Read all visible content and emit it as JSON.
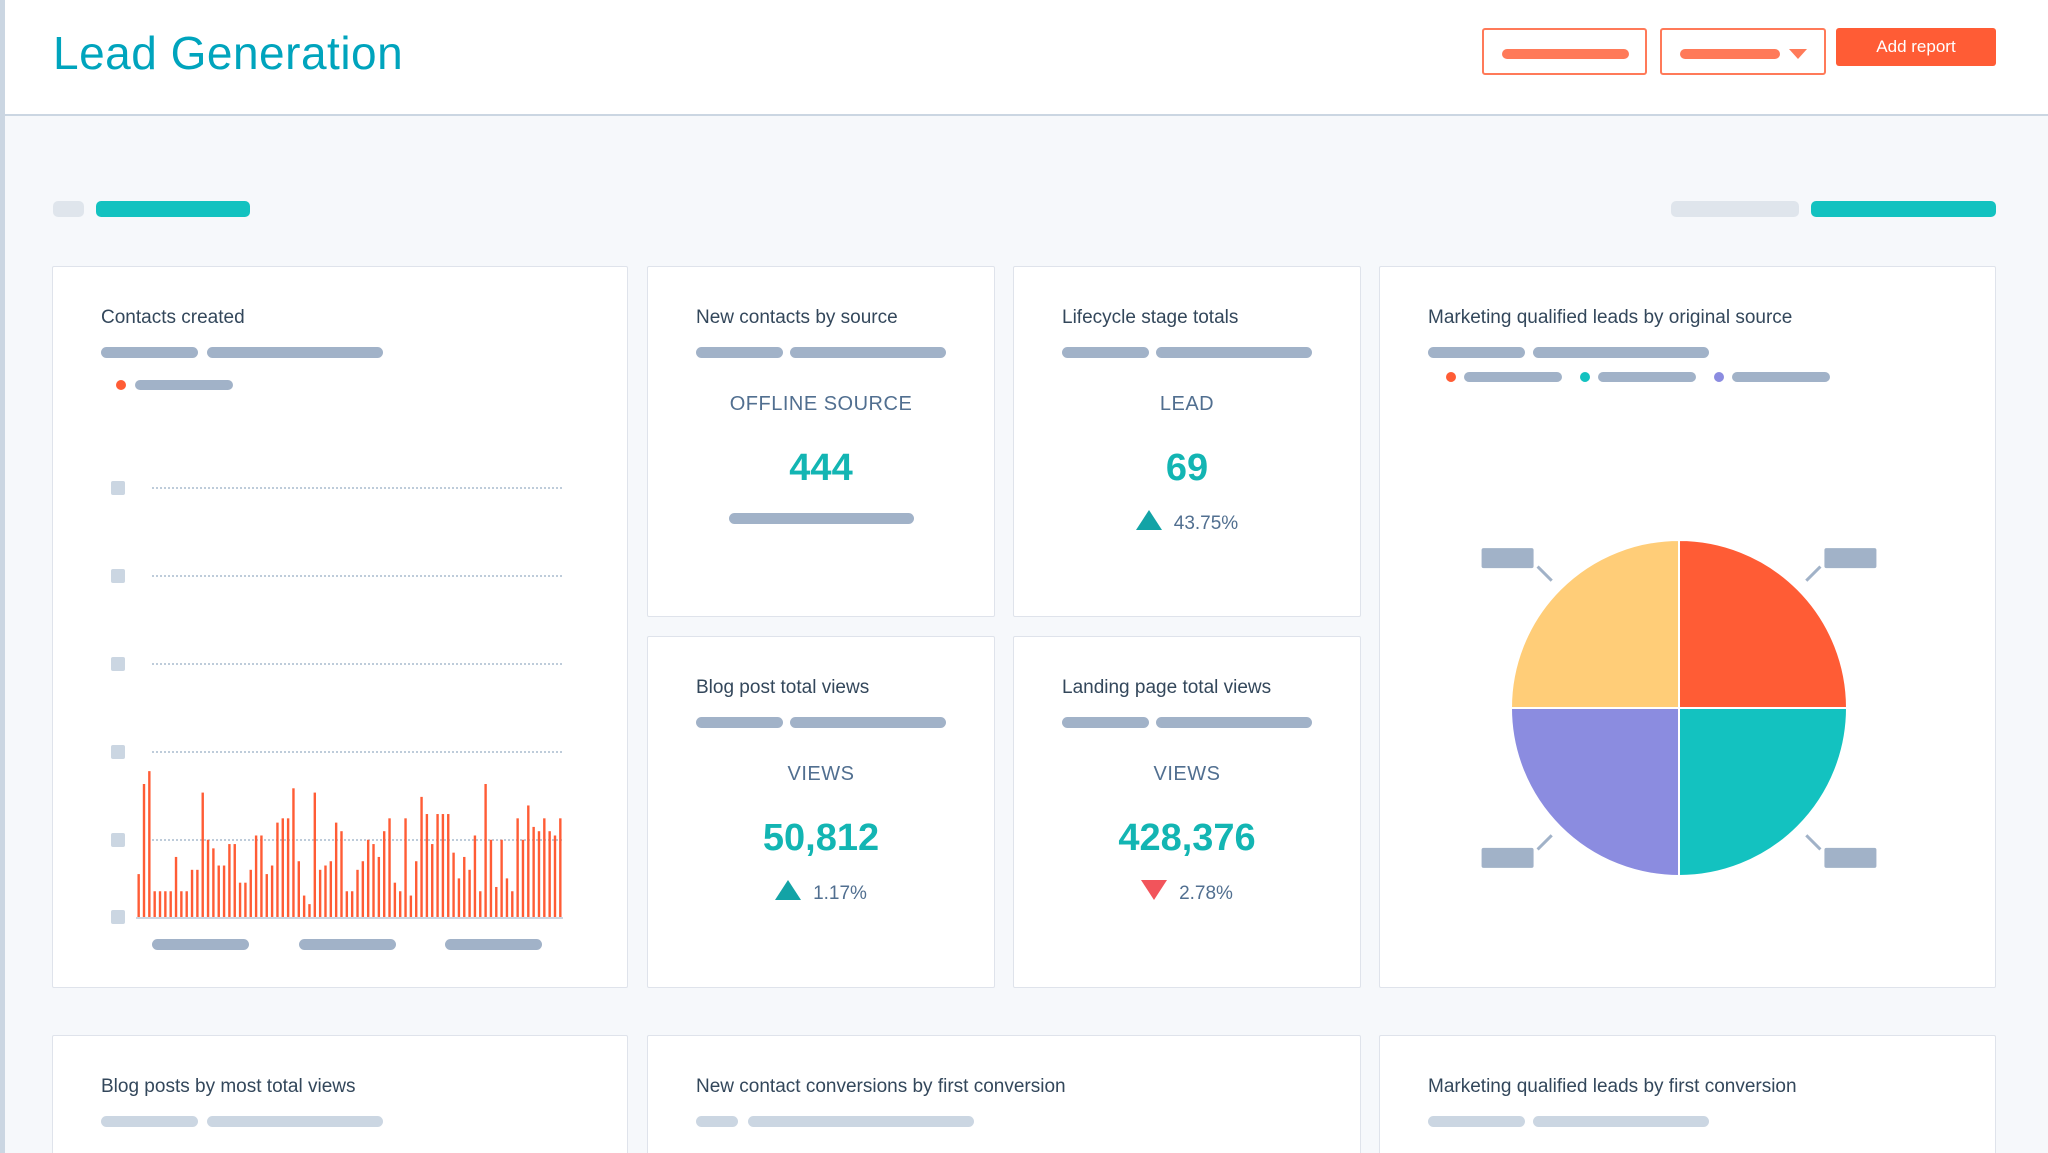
{
  "header": {
    "title": "Lead Generation",
    "add_report_label": "Add report"
  },
  "colors": {
    "brand_teal": "#00a4bd",
    "accent_orange": "#ff5c35",
    "kpi_teal": "#13b5b3",
    "increase": "#13a3a6",
    "decrease": "#f2545b",
    "pie_orange": "#ff5c35",
    "pie_teal": "#13c2c0",
    "pie_purple": "#8b8ce0",
    "pie_yellow": "#ffcd78"
  },
  "cards": {
    "contacts_created": {
      "title": "Contacts created"
    },
    "new_contacts_by_source": {
      "title": "New contacts by source",
      "label": "OFFLINE SOURCE",
      "value": "444"
    },
    "lifecycle_stage_totals": {
      "title": "Lifecycle stage totals",
      "label": "LEAD",
      "value": "69",
      "change": "43.75%",
      "direction": "up"
    },
    "mql_by_original_source": {
      "title": "Marketing qualified leads by original source"
    },
    "blog_post_total_views": {
      "title": "Blog post total views",
      "label": "VIEWS",
      "value": "50,812",
      "change": "1.17%",
      "direction": "up"
    },
    "landing_page_total_views": {
      "title": "Landing page total views",
      "label": "VIEWS",
      "value": "428,376",
      "change": "2.78%",
      "direction": "down"
    },
    "blog_posts_by_most_views": {
      "title": "Blog posts by most total views"
    },
    "new_contact_conversions": {
      "title": "New contact conversions by first conversion"
    },
    "mql_by_first_conversion": {
      "title": "Marketing qualified leads by first conversion"
    }
  },
  "chart_data": [
    {
      "type": "bar",
      "values": [
        10,
        31,
        34,
        6,
        6,
        6,
        6,
        14,
        6,
        6,
        11,
        11,
        29,
        18,
        16,
        12,
        12,
        17,
        17,
        8,
        8,
        11,
        19,
        19,
        10,
        12,
        22,
        23,
        23,
        30,
        13,
        5,
        3,
        29,
        11,
        12,
        13,
        22,
        20,
        6,
        6,
        11,
        13,
        18,
        17,
        14,
        20,
        23,
        8,
        6,
        23,
        5,
        13,
        28,
        24,
        17,
        24,
        24,
        24,
        15,
        9,
        14,
        11,
        19,
        6,
        31,
        18,
        7,
        18,
        9,
        6,
        23,
        18,
        26,
        21,
        20,
        23,
        20,
        19,
        23
      ],
      "ylim": [
        0,
        100
      ],
      "grid": true
    },
    {
      "type": "pie",
      "values": [
        15,
        15,
        15,
        15
      ],
      "colors": [
        "#ff5c35",
        "#13c2c0",
        "#8b8ce0",
        "#ffcd78"
      ],
      "grid": false
    }
  ]
}
